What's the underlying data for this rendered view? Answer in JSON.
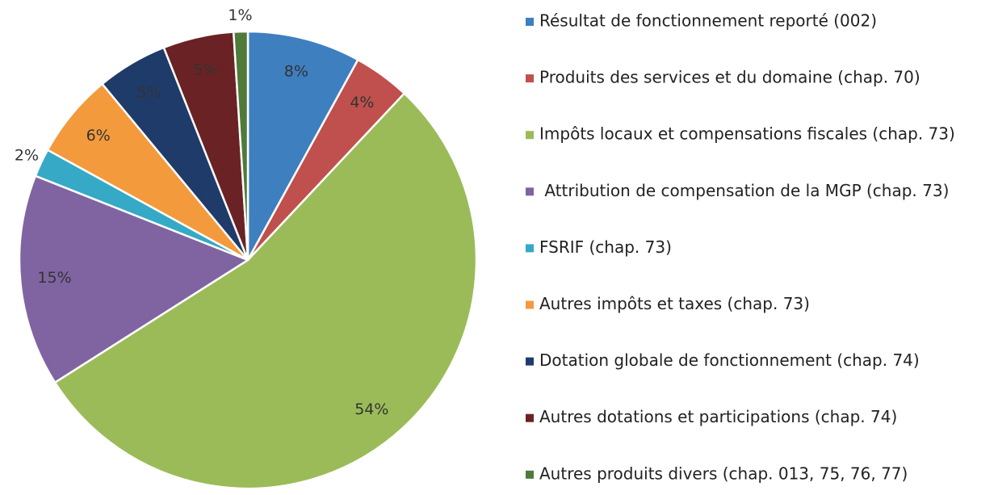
{
  "chart_data": {
    "type": "pie",
    "categories": [
      "Résultat de fonctionnement reporté (002)",
      "Produits des services et du domaine (chap. 70)",
      "Impôts locaux et compensations fiscales (chap. 73)",
      " Attribution de compensation de la MGP (chap. 73)",
      "FSRIF (chap. 73)",
      "Autres impôts et taxes (chap. 73)",
      "Dotation globale de fonctionnement (chap. 74)",
      "Autres dotations et participations (chap. 74)",
      "Autres produits divers (chap. 013, 75, 76, 77)"
    ],
    "values": [
      8,
      4,
      54,
      15,
      2,
      6,
      5,
      5,
      1
    ],
    "value_labels": [
      "8%",
      "4%",
      "54%",
      "15%",
      "2%",
      "6%",
      "5%",
      "5%",
      "1%"
    ],
    "colors": [
      "#3e7fc0",
      "#c0504d",
      "#9bbb59",
      "#8064a2",
      "#35a9c6",
      "#f39a3c",
      "#1f3b6a",
      "#6b2224",
      "#4f7a3a"
    ],
    "legend": "right"
  }
}
